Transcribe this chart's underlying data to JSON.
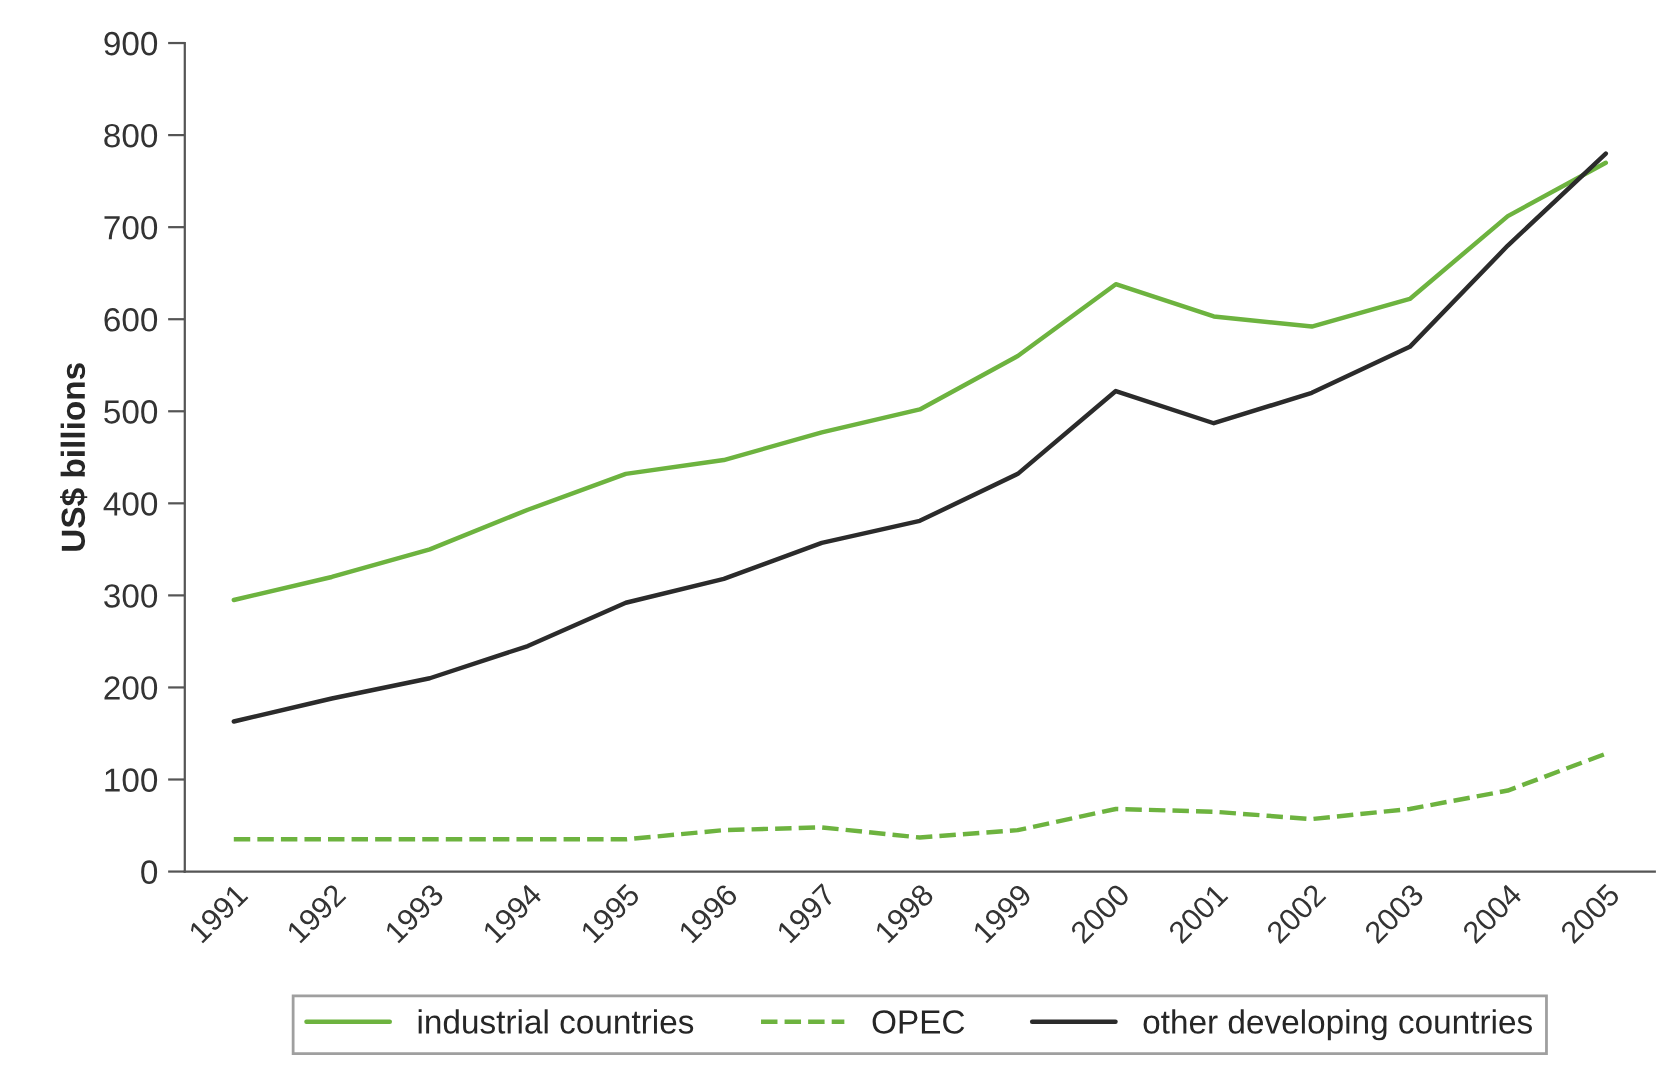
{
  "chart_data": {
    "type": "line",
    "ylabel": "US$ billions",
    "categories": [
      "1991",
      "1992",
      "1993",
      "1994",
      "1995",
      "1996",
      "1997",
      "1998",
      "1999",
      "2000",
      "2001",
      "2002",
      "2003",
      "2004",
      "2005"
    ],
    "series": [
      {
        "name": "industrial countries",
        "color": "#6db33f",
        "line_style": "solid",
        "values": [
          295,
          320,
          350,
          393,
          432,
          447,
          477,
          502,
          560,
          638,
          603,
          592,
          622,
          712,
          770
        ]
      },
      {
        "name": "OPEC",
        "color": "#6db33f",
        "line_style": "dashed",
        "values": [
          35,
          35,
          35,
          35,
          35,
          45,
          48,
          37,
          45,
          68,
          65,
          57,
          68,
          88,
          128
        ]
      },
      {
        "name": "other developing countries",
        "color": "#2b2b2b",
        "line_style": "solid",
        "values": [
          163,
          188,
          210,
          245,
          292,
          318,
          357,
          381,
          432,
          522,
          487,
          520,
          570,
          680,
          780
        ]
      }
    ],
    "ylim": [
      0,
      900
    ],
    "yticks": [
      0,
      100,
      200,
      300,
      400,
      500,
      600,
      700,
      800,
      900
    ],
    "grid": false,
    "legend": "bottom"
  }
}
